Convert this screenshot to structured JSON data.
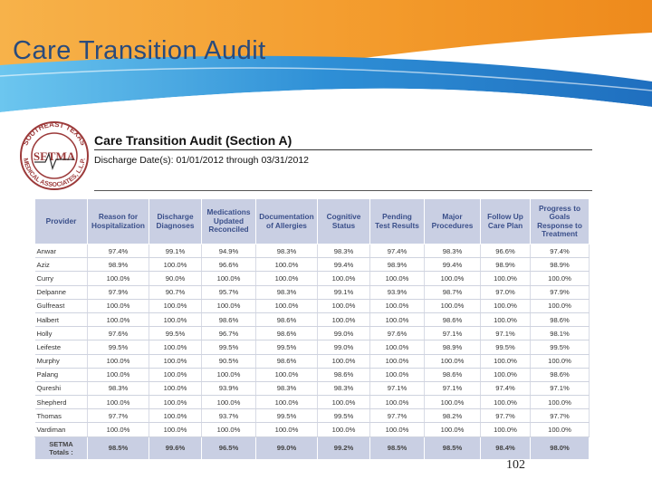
{
  "slide": {
    "title": "Care Transition Audit",
    "page_number": "102"
  },
  "colors": {
    "banner_orange": "#f39a2b",
    "banner_blue": "#2e8fd6",
    "title_blue": "#2a4b7c",
    "header_fill": "#c9cfe3",
    "header_text": "#3a4f8a"
  },
  "logo": {
    "top_text": "SOUTHEAST TEXAS",
    "center_text": "SETMA",
    "bottom_text": "MEDICAL ASSOCIATES, L.L.P."
  },
  "document": {
    "title": "Care Transition Audit (Section A)",
    "date_range": "Discharge Date(s):  01/01/2012 through 03/31/2012"
  },
  "table": {
    "headers": [
      [
        "Provider"
      ],
      [
        "Reason for",
        "Hospitalization"
      ],
      [
        "Discharge",
        "Diagnoses"
      ],
      [
        "Medications",
        "Updated",
        "Reconciled"
      ],
      [
        "Documentation",
        "of Allergies"
      ],
      [
        "Cognitive",
        "Status"
      ],
      [
        "Pending",
        "Test Results"
      ],
      [
        "Major",
        "Procedures"
      ],
      [
        "Follow Up",
        "Care Plan"
      ],
      [
        "Progress to",
        "Goals",
        "Response to",
        "Treatment"
      ]
    ],
    "rows": [
      [
        "Anwar",
        "97.4%",
        "99.1%",
        "94.9%",
        "98.3%",
        "98.3%",
        "97.4%",
        "98.3%",
        "96.6%",
        "97.4%"
      ],
      [
        "Aziz",
        "98.9%",
        "100.0%",
        "96.6%",
        "100.0%",
        "99.4%",
        "98.9%",
        "99.4%",
        "98.9%",
        "98.9%"
      ],
      [
        "Curry",
        "100.0%",
        "90.0%",
        "100.0%",
        "100.0%",
        "100.0%",
        "100.0%",
        "100.0%",
        "100.0%",
        "100.0%"
      ],
      [
        "Delpanne",
        "97.9%",
        "90.7%",
        "95.7%",
        "98.3%",
        "99.1%",
        "93.9%",
        "98.7%",
        "97.0%",
        "97.9%"
      ],
      [
        "Gulfreast",
        "100.0%",
        "100.0%",
        "100.0%",
        "100.0%",
        "100.0%",
        "100.0%",
        "100.0%",
        "100.0%",
        "100.0%"
      ],
      [
        "Halbert",
        "100.0%",
        "100.0%",
        "98.6%",
        "98.6%",
        "100.0%",
        "100.0%",
        "98.6%",
        "100.0%",
        "98.6%"
      ],
      [
        "Holly",
        "97.6%",
        "99.5%",
        "96.7%",
        "98.6%",
        "99.0%",
        "97.6%",
        "97.1%",
        "97.1%",
        "98.1%"
      ],
      [
        "Leifeste",
        "99.5%",
        "100.0%",
        "99.5%",
        "99.5%",
        "99.0%",
        "100.0%",
        "98.9%",
        "99.5%",
        "99.5%"
      ],
      [
        "Murphy",
        "100.0%",
        "100.0%",
        "90.5%",
        "98.6%",
        "100.0%",
        "100.0%",
        "100.0%",
        "100.0%",
        "100.0%"
      ],
      [
        "Palang",
        "100.0%",
        "100.0%",
        "100.0%",
        "100.0%",
        "98.6%",
        "100.0%",
        "98.6%",
        "100.0%",
        "98.6%"
      ],
      [
        "Qureshi",
        "98.3%",
        "100.0%",
        "93.9%",
        "98.3%",
        "98.3%",
        "97.1%",
        "97.1%",
        "97.4%",
        "97.1%"
      ],
      [
        "Shepherd",
        "100.0%",
        "100.0%",
        "100.0%",
        "100.0%",
        "100.0%",
        "100.0%",
        "100.0%",
        "100.0%",
        "100.0%"
      ],
      [
        "Thomas",
        "97.7%",
        "100.0%",
        "93.7%",
        "99.5%",
        "99.5%",
        "97.7%",
        "98.2%",
        "97.7%",
        "97.7%"
      ],
      [
        "Vardiman",
        "100.0%",
        "100.0%",
        "100.0%",
        "100.0%",
        "100.0%",
        "100.0%",
        "100.0%",
        "100.0%",
        "100.0%"
      ]
    ],
    "totals": {
      "label_line1": "SETMA",
      "label_line2": "Totals :",
      "values": [
        "98.5%",
        "99.6%",
        "96.5%",
        "99.0%",
        "99.2%",
        "98.5%",
        "98.5%",
        "98.4%",
        "98.0%"
      ]
    }
  }
}
